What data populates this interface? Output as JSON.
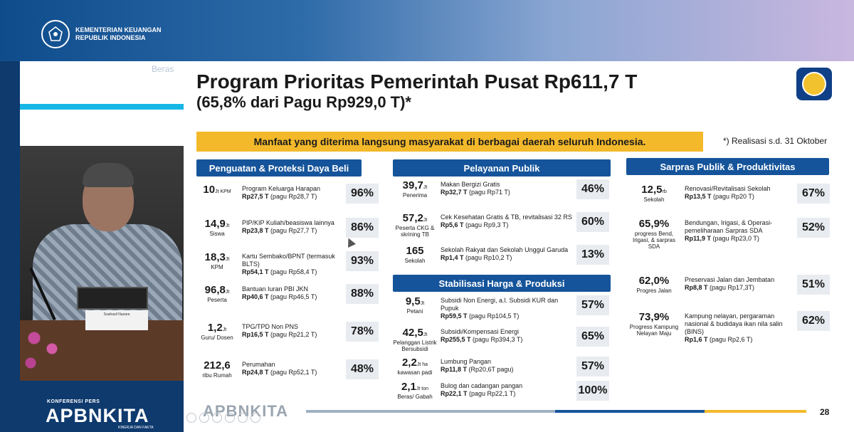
{
  "header": {
    "org_line1": "KEMENTERIAN KEUANGAN",
    "org_line2": "REPUBLIK INDONESIA"
  },
  "video": {
    "nameplate": "Suahasil Nazara"
  },
  "branding": {
    "konferensi": "KONFERENSI PERS",
    "apbn": "APBNKITA",
    "tagline": "KINERJA DAN FAKTA"
  },
  "slide": {
    "ghost_word": "Beras",
    "title_line1": "Program Prioritas Pemerintah Pusat Rp611,7 T",
    "title_line2": "(65,8% dari Pagu Rp929,0 T)*",
    "banner": "Manfaat yang diterima langsung masyarakat di berbagai daerah seluruh Indonesia.",
    "footnote": "*) Realisasi s.d. 31 Oktober",
    "page_number": "28",
    "bottom_brand": "APBNKITA",
    "colors": {
      "navy": "#15549a",
      "gold": "#f3b92b",
      "cyan": "#16b7e6"
    }
  },
  "columns": [
    {
      "header": "Penguatan & Proteksi Daya Beli",
      "rows": [
        {
          "big": "10",
          "unit": "Jt KPM",
          "sub": "",
          "title": "Program Keluarga Harapan",
          "amount": "Rp27,5 T",
          "pagu": " (pagu Rp28,7 T)",
          "pct": "96%"
        },
        {
          "big": "14,9",
          "unit": "Jt",
          "sub": "Siswa",
          "title": "PIP/KIP Kuliah/beasiswa lainnya",
          "amount": "Rp23,8 T",
          "pagu": " (pagu Rp27,7 T)",
          "pct": "86%"
        },
        {
          "big": "18,3",
          "unit": "Jt",
          "sub": "KPM",
          "title": "Kartu Sembako/BPNT (termasuk BLTS)",
          "amount": "Rp54,1 T",
          "pagu": " (pagu Rp58,4 T)",
          "pct": "93%"
        },
        {
          "big": "96,8",
          "unit": "Jt",
          "sub": "Peserta",
          "title": "Bantuan Iuran PBI JKN",
          "amount": "Rp40,6 T",
          "pagu": " (pagu Rp46,5 T)",
          "pct": "88%"
        },
        {
          "big": "1,2",
          "unit": "Jt",
          "sub": "Guru/ Dosen",
          "title": "TPG/TPD Non PNS",
          "amount": "Rp16,5 T",
          "pagu": " (pagu Rp21,2 T)",
          "pct": "78%"
        },
        {
          "big": "212,6",
          "unit": "",
          "sub": "ribu Rumah",
          "title": "Perumahan",
          "amount": "Rp24,8 T",
          "pagu": " (pagu Rp52,1 T)",
          "pct": "48%"
        }
      ]
    },
    {
      "header": "Pelayanan Publik",
      "rows": [
        {
          "big": "39,7",
          "unit": "Jt",
          "sub": "Penerima",
          "title": "Makan Bergizi Gratis",
          "amount": "Rp32,7 T",
          "pagu": " (pagu Rp71 T)",
          "pct": "46%"
        },
        {
          "big": "57,2",
          "unit": "Jt",
          "sub": "Peserta CKG & skrining TB",
          "title": "Cek Kesehatan Gratis & TB, revitalisasi 32 RS",
          "amount": "Rp5,6 T",
          "pagu": " (pagu Rp9,3 T)",
          "pct": "60%"
        },
        {
          "big": "165",
          "unit": "",
          "sub": "Sekolah",
          "title": "Sekolah Rakyat dan Sekolah Unggul Garuda",
          "amount": "Rp1,4 T",
          "pagu": " (pagu Rp10,2 T)",
          "pct": "13%"
        }
      ]
    },
    {
      "header": "Stabilisasi Harga & Produksi",
      "rows": [
        {
          "big": "9,5",
          "unit": "Jt",
          "sub": "Petani",
          "title": "Subsidi Non Energi, a.l. Subsidi KUR dan Pupuk",
          "amount": "Rp59,5 T",
          "pagu": " (pagu Rp104,5 T)",
          "pct": "57%"
        },
        {
          "big": "42,5",
          "unit": "Jt",
          "sub": "Pelanggan Listrik Bersubsidi",
          "title": "Subsidi/Kompensasi Energi",
          "amount": "Rp255,5 T",
          "pagu": " (pagu Rp394,3 T)",
          "pct": "65%"
        },
        {
          "big": "2,2",
          "unit": "Jt ha",
          "sub": "kawasan padi",
          "title": "Lumbung Pangan",
          "amount": "Rp11,8 T",
          "pagu": " (Rp20,6T pagu)",
          "pct": "57%"
        },
        {
          "big": "2,1",
          "unit": "Jt ton",
          "sub": "Beras/ Gabah",
          "title": "Bulog dan cadangan pangan",
          "amount": "Rp22,1 T",
          "pagu": " (pagu Rp22,1 T)",
          "pct": "100%"
        }
      ]
    },
    {
      "header": "Sarpras Publik & Produktivitas",
      "rows": [
        {
          "big": "12,5",
          "unit": "rb",
          "sub": "Sekolah",
          "title": "Renovasi/Revitalisasi Sekolah",
          "amount": "Rp13,5 T",
          "pagu": " (pagu Rp20 T)",
          "pct": "67%"
        },
        {
          "big": "65,9%",
          "unit": "",
          "sub": "progress Bend, Irigasi, & sarpras SDA",
          "title": "Bendungan, Irigasi, & Operasi-pemeliharaan Sarpras SDA",
          "amount": "Rp11,9 T",
          "pagu": " (pagu Rp23,0 T)",
          "pct": "52%"
        },
        {
          "big": "62,0%",
          "unit": "",
          "sub": "Progres Jalan",
          "title": "Preservasi Jalan dan Jembatan",
          "amount": "Rp8,8 T",
          "pagu": " (pagu Rp17,3T)",
          "pct": "51%"
        },
        {
          "big": "73,9%",
          "unit": "",
          "sub": "Progress Kampung Nelayan Maju",
          "title": "Kampung nelayan, pergaraman nasional & budidaya ikan nila salin (BINS)",
          "amount": "Rp1,6 T",
          "pagu": " (pagu Rp2,6 T)",
          "pct": "62%"
        }
      ]
    }
  ]
}
